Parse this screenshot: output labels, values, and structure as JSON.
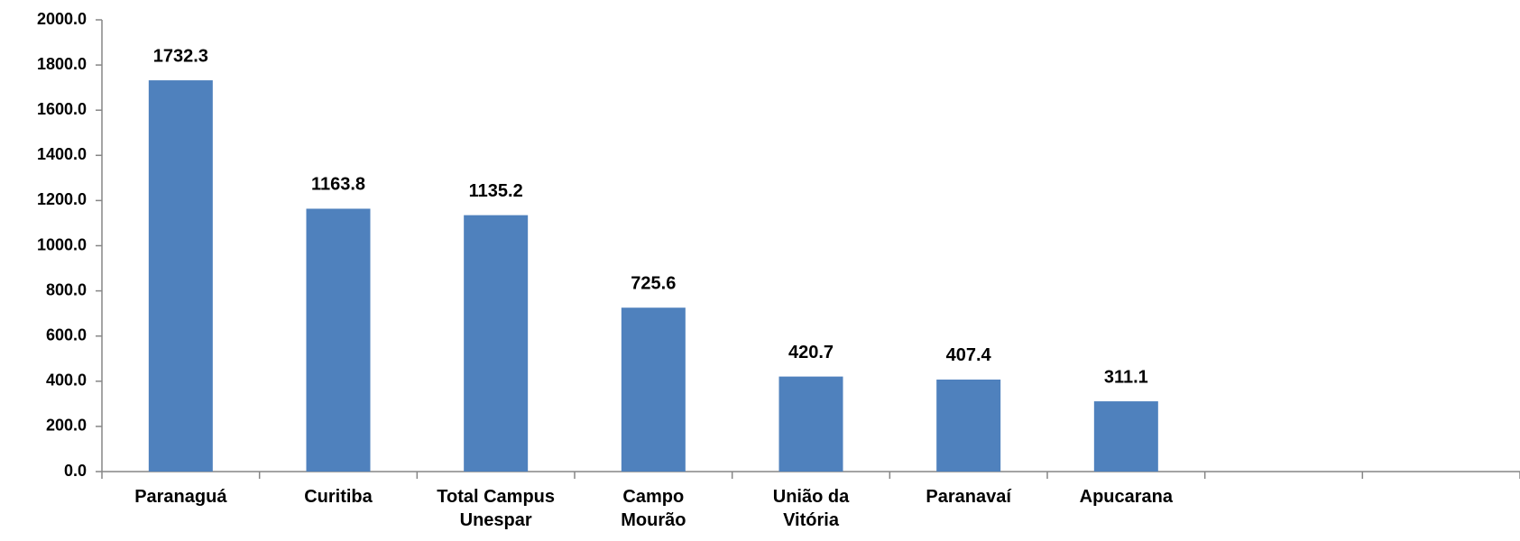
{
  "chart_data": {
    "type": "bar",
    "categories": [
      "Paranaguá",
      "Curitiba",
      "Total Campus Unespar",
      "Campo Mourão",
      "União da Vitória",
      "Paranavaí",
      "Apucarana",
      null,
      null
    ],
    "values": [
      1732.3,
      1163.8,
      1135.2,
      725.6,
      420.7,
      407.4,
      311.1,
      null,
      null
    ],
    "color": "#4f81bd",
    "ylim": [
      0,
      2000
    ],
    "yticks": [
      {
        "value": 0,
        "label": "0.0"
      },
      {
        "value": 200,
        "label": "200.0"
      },
      {
        "value": 400,
        "label": "400.0"
      },
      {
        "value": 600,
        "label": "600.0"
      },
      {
        "value": 800,
        "label": "800.0"
      },
      {
        "value": 1000,
        "label": "1000.0"
      },
      {
        "value": 1200,
        "label": "1200.0"
      },
      {
        "value": 1400,
        "label": "1400.0"
      },
      {
        "value": 1600,
        "label": "1600.0"
      },
      {
        "value": 1800,
        "label": "1800.0"
      },
      {
        "value": 2000,
        "label": "2000.0"
      }
    ],
    "grid": false
  }
}
